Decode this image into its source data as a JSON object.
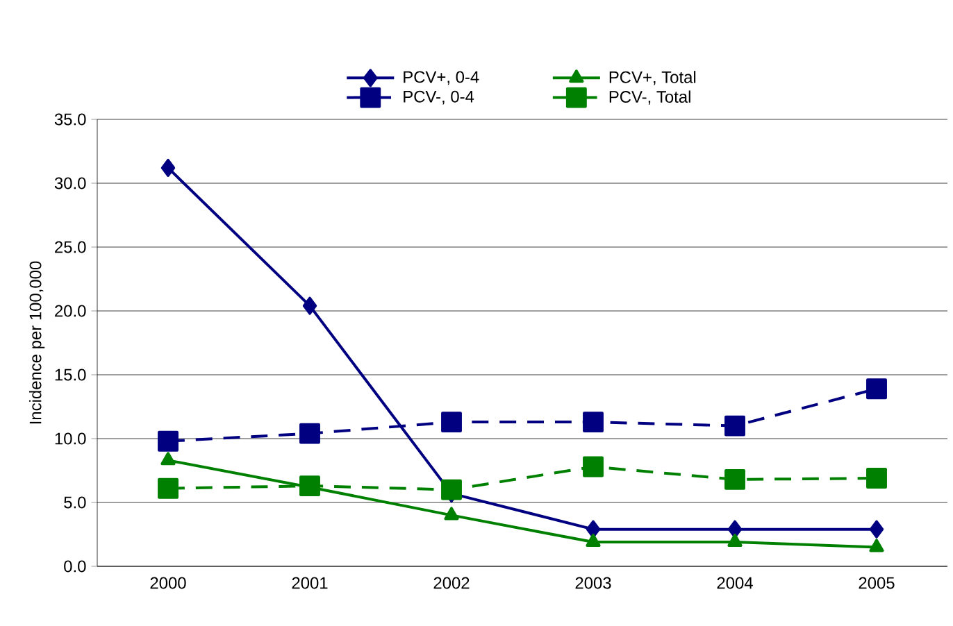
{
  "chart_data": {
    "type": "line",
    "ylabel": "Incidence per 100,000",
    "categories": [
      "2000",
      "2001",
      "2002",
      "2003",
      "2004",
      "2005"
    ],
    "series": [
      {
        "name": "PCV+, 0-4",
        "color": "#000080",
        "marker": "diamond",
        "line_style": "solid",
        "values": [
          31.2,
          20.4,
          5.7,
          2.9,
          2.9,
          2.9
        ]
      },
      {
        "name": "PCV+, Total",
        "color": "#008000",
        "marker": "triangle",
        "line_style": "solid",
        "values": [
          8.3,
          6.2,
          4.0,
          1.9,
          1.9,
          1.5
        ]
      },
      {
        "name": "PCV-, 0-4",
        "color": "#000080",
        "marker": "square",
        "line_style": "dashed",
        "values": [
          9.8,
          10.4,
          11.3,
          11.3,
          11.0,
          13.9
        ]
      },
      {
        "name": "PCV-, Total",
        "color": "#008000",
        "marker": "square",
        "line_style": "dashed",
        "values": [
          6.1,
          6.3,
          6.0,
          7.8,
          6.8,
          6.9
        ]
      }
    ],
    "ylim": [
      0,
      35
    ],
    "yticks": [
      {
        "value": 0,
        "label": "0.0"
      },
      {
        "value": 5,
        "label": "5.0"
      },
      {
        "value": 10,
        "label": "10.0"
      },
      {
        "value": 15,
        "label": "15.0"
      },
      {
        "value": 20,
        "label": "20.0"
      },
      {
        "value": 25,
        "label": "25.0"
      },
      {
        "value": 30,
        "label": "30.0"
      },
      {
        "value": 35,
        "label": "35.0"
      }
    ],
    "grid": "y",
    "legend": "top"
  }
}
